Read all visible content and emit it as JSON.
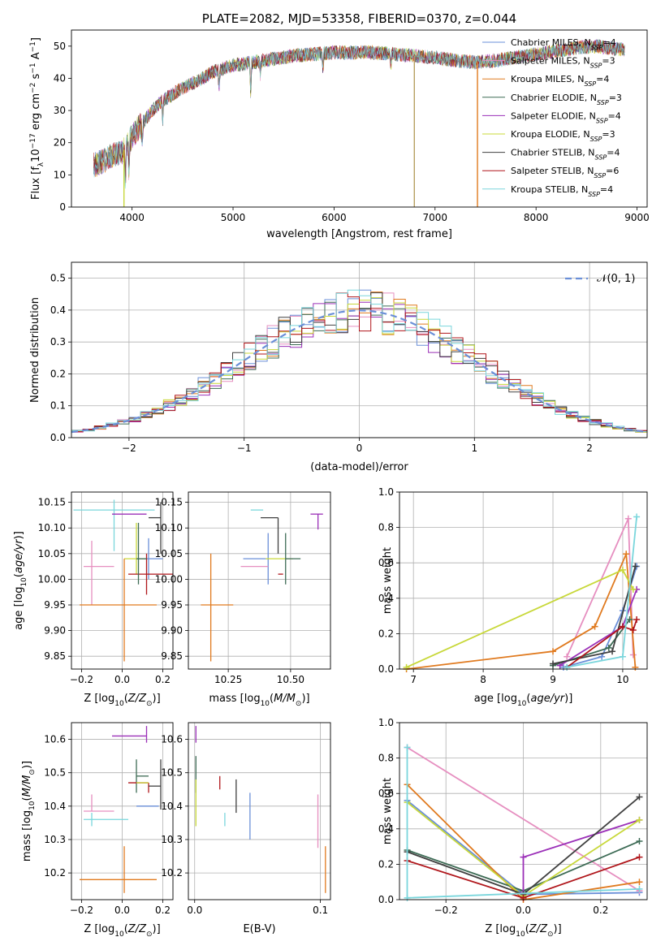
{
  "chart_data": [
    {
      "id": "spectrum",
      "type": "line",
      "title": "PLATE=2082, MJD=53358, FIBERID=0370, z=0.044",
      "xlabel": "wavelength [Angstrom, rest frame]",
      "ylabel": "Flux [f_λ10^-17 erg cm^-2 s^-1 A^-1]",
      "xlim": [
        3400,
        9100
      ],
      "ylim": [
        0,
        55
      ],
      "xticks": [
        4000,
        5000,
        6000,
        7000,
        8000,
        9000
      ],
      "yticks": [
        0,
        10,
        20,
        30,
        40,
        50
      ],
      "grid": false,
      "legend_position": "top-right",
      "legend": [
        {
          "label": "Chabrier MILES, N_SSP=4",
          "color": "#6a8fd8"
        },
        {
          "label": "Salpeter MILES, N_SSP=3",
          "color": "#e68fc0"
        },
        {
          "label": "Kroupa MILES, N_SSP=4",
          "color": "#e07a1f"
        },
        {
          "label": "Chabrier ELODIE, N_SSP=3",
          "color": "#3d6b55"
        },
        {
          "label": "Salpeter ELODIE, N_SSP=4",
          "color": "#9b30b8"
        },
        {
          "label": "Kroupa ELODIE, N_SSP=3",
          "color": "#c8d83a"
        },
        {
          "label": "Chabrier STELIB, N_SSP=4",
          "color": "#404040"
        },
        {
          "label": "Salpeter STELIB, N_SSP=6",
          "color": "#b0161b"
        },
        {
          "label": "Kroupa STELIB, N_SSP=4",
          "color": "#7ad6dc"
        }
      ],
      "continuum": {
        "x": [
          3620,
          3700,
          3800,
          3900,
          3950,
          4000,
          4100,
          4200,
          4300,
          4400,
          4500,
          4600,
          4700,
          4800,
          4900,
          5000,
          5100,
          5200,
          5300,
          5400,
          5500,
          5600,
          5800,
          6000,
          6200,
          6400,
          6600,
          6800,
          7000,
          7200,
          7400,
          7600,
          7800,
          8000,
          8200,
          8400,
          8600,
          8800
        ],
        "y": [
          13,
          14,
          16,
          17,
          19,
          22,
          26,
          30,
          33,
          35,
          37,
          38.5,
          40,
          42,
          43,
          44,
          44.5,
          45,
          45.5,
          46,
          46.5,
          47,
          47.5,
          48,
          48,
          48,
          47.5,
          47,
          46.5,
          45.5,
          45,
          45.5,
          46.5,
          47.5,
          48.5,
          49.5,
          50,
          49
        ]
      },
      "spikes": [
        {
          "x": 3920,
          "y": 0,
          "color": "#c8d83a"
        },
        {
          "x": 6795,
          "y": 0,
          "color": "#b8a060"
        },
        {
          "x": 7420,
          "y": 0,
          "color": "#e07a1f"
        }
      ]
    },
    {
      "id": "residuals",
      "type": "histogram",
      "xlabel": "(data-model)/error",
      "ylabel": "Normed distribution",
      "xlim": [
        -2.5,
        2.5
      ],
      "ylim": [
        0,
        0.55
      ],
      "xticks": [
        -2,
        -1,
        0,
        1,
        2
      ],
      "yticks": [
        0.0,
        0.1,
        0.2,
        0.3,
        0.4,
        0.5
      ],
      "grid": true,
      "legend_position": "top-right",
      "reference": {
        "label": "𝒩(0, 1)",
        "color": "#6a8fd8",
        "dash": true
      },
      "bin_width": 0.1
    },
    {
      "id": "age_vs_Z",
      "type": "scatter",
      "xlabel": "Z [log10(Z/Z⊙)]",
      "ylabel": "age  [log10(age/yr)]",
      "xlim": [
        -0.25,
        0.25
      ],
      "ylim": [
        9.825,
        10.17
      ],
      "xticks": [
        -0.2,
        0.0,
        0.2
      ],
      "yticks": [
        9.85,
        9.9,
        9.95,
        10.0,
        10.05,
        10.1,
        10.15
      ],
      "grid": true,
      "points": [
        {
          "x": -0.04,
          "y": 10.135,
          "xerr": [
            0.2,
            0.2
          ],
          "yerr": [
            0.08,
            0.02
          ],
          "color": "#7ad6dc"
        },
        {
          "x": 0.12,
          "y": 10.127,
          "xerr": [
            0.17,
            0.0
          ],
          "yerr": [
            0.0,
            0.0
          ],
          "color": "#9b30b8"
        },
        {
          "x": 0.19,
          "y": 10.12,
          "xerr": [
            0.06,
            0.0
          ],
          "yerr": [
            0.07,
            0.03
          ],
          "color": "#404040"
        },
        {
          "x": 0.13,
          "y": 10.04,
          "xerr": [
            0.06,
            0.07
          ],
          "yerr": [
            0.04,
            0.04
          ],
          "color": "#6a8fd8"
        },
        {
          "x": 0.07,
          "y": 10.04,
          "xerr": [
            0.06,
            0.05
          ],
          "yerr": [
            0.03,
            0.07
          ],
          "color": "#c8d83a"
        },
        {
          "x": -0.15,
          "y": 10.025,
          "xerr": [
            0.04,
            0.11
          ],
          "yerr": [
            0.075,
            0.05
          ],
          "color": "#e68fc0"
        },
        {
          "x": 0.12,
          "y": 10.01,
          "xerr": [
            0.09,
            0.13
          ],
          "yerr": [
            0.04,
            0.04
          ],
          "color": "#b0161b"
        },
        {
          "x": 0.08,
          "y": 10.04,
          "xerr": [
            0.01,
            0.04
          ],
          "yerr": [
            0.05,
            0.07
          ],
          "color": "#3d6b55"
        },
        {
          "x": 0.01,
          "y": 9.95,
          "xerr": [
            0.22,
            0.16
          ],
          "yerr": [
            0.11,
            0.09
          ],
          "color": "#e07a1f"
        }
      ]
    },
    {
      "id": "age_vs_mass",
      "type": "scatter",
      "xlabel": "mass [log10(M/M⊙)]",
      "ylabel": "",
      "xlim": [
        10.09,
        10.66
      ],
      "ylim": [
        9.825,
        10.17
      ],
      "xticks": [
        10.25,
        10.5
      ],
      "yticks": [
        9.85,
        9.9,
        9.95,
        10.0,
        10.05,
        10.1,
        10.15
      ],
      "grid": true,
      "points": [
        {
          "x": 10.36,
          "y": 10.135,
          "xerr": [
            0.02,
            0.03
          ],
          "yerr": [
            0.0,
            0.0
          ],
          "color": "#7ad6dc"
        },
        {
          "x": 10.61,
          "y": 10.127,
          "xerr": [
            0.03,
            0.02
          ],
          "yerr": [
            0.03,
            0.0
          ],
          "color": "#9b30b8"
        },
        {
          "x": 10.45,
          "y": 10.12,
          "xerr": [
            0.07,
            0.0
          ],
          "yerr": [
            0.07,
            0.0
          ],
          "color": "#404040"
        },
        {
          "x": 10.41,
          "y": 10.04,
          "xerr": [
            0.1,
            0.0
          ],
          "yerr": [
            0.05,
            0.05
          ],
          "color": "#6a8fd8"
        },
        {
          "x": 10.45,
          "y": 10.04,
          "xerr": [
            0.05,
            0.06
          ],
          "yerr": [
            0.0,
            0.0
          ],
          "color": "#c8d83a"
        },
        {
          "x": 10.39,
          "y": 10.025,
          "xerr": [
            0.09,
            0.02
          ],
          "yerr": [
            0.0,
            0.0
          ],
          "color": "#e68fc0"
        },
        {
          "x": 10.47,
          "y": 10.01,
          "xerr": [
            0.02,
            0.0
          ],
          "yerr": [
            0.0,
            0.0
          ],
          "color": "#b0161b"
        },
        {
          "x": 10.48,
          "y": 10.04,
          "xerr": [
            0.0,
            0.06
          ],
          "yerr": [
            0.05,
            0.05
          ],
          "color": "#3d6b55"
        },
        {
          "x": 10.18,
          "y": 9.95,
          "xerr": [
            0.04,
            0.09
          ],
          "yerr": [
            0.11,
            0.1
          ],
          "color": "#e07a1f"
        }
      ]
    },
    {
      "id": "weight_vs_age",
      "type": "line",
      "xlabel": "age  [log10(age/yr)]",
      "ylabel": "mass weight",
      "xlim": [
        6.8,
        10.35
      ],
      "ylim": [
        0.0,
        1.0
      ],
      "xticks": [
        7,
        8,
        9,
        10
      ],
      "yticks": [
        0.0,
        0.2,
        0.4,
        0.6,
        0.8,
        1.0
      ],
      "grid": true,
      "series": [
        {
          "x": [
            9.15,
            9.7,
            10.0,
            10.2
          ],
          "y": [
            0.01,
            0.07,
            0.33,
            0.58
          ],
          "color": "#6a8fd8"
        },
        {
          "x": [
            9.2,
            10.08,
            10.15
          ],
          "y": [
            0.07,
            0.85,
            0.08
          ],
          "color": "#e68fc0"
        },
        {
          "x": [
            6.9,
            9.0,
            9.6,
            10.05,
            10.18
          ],
          "y": [
            0.0,
            0.1,
            0.24,
            0.65,
            0.01
          ],
          "color": "#e07a1f"
        },
        {
          "x": [
            9.0,
            9.8,
            10.1
          ],
          "y": [
            0.02,
            0.12,
            0.28
          ],
          "color": "#3d6b55"
        },
        {
          "x": [
            9.1,
            10.0,
            10.2
          ],
          "y": [
            0.02,
            0.24,
            0.45
          ],
          "color": "#9b30b8"
        },
        {
          "x": [
            6.9,
            10.0,
            10.15
          ],
          "y": [
            0.01,
            0.56,
            0.45
          ],
          "color": "#c8d83a"
        },
        {
          "x": [
            9.0,
            9.85,
            10.18
          ],
          "y": [
            0.03,
            0.1,
            0.58
          ],
          "color": "#404040"
        },
        {
          "x": [
            9.2,
            10.0,
            10.15,
            10.2
          ],
          "y": [
            0.01,
            0.24,
            0.22,
            0.28
          ],
          "color": "#b0161b"
        },
        {
          "x": [
            9.2,
            10.0,
            10.2
          ],
          "y": [
            0.01,
            0.07,
            0.86
          ],
          "color": "#7ad6dc"
        }
      ]
    },
    {
      "id": "mass_vs_Z",
      "type": "scatter",
      "xlabel": "Z [log10(Z/Z⊙)]",
      "ylabel": "mass [log10(M/M⊙)]",
      "xlim": [
        -0.25,
        0.25
      ],
      "ylim": [
        10.12,
        10.65
      ],
      "xticks": [
        -0.2,
        0.0,
        0.2
      ],
      "yticks": [
        10.2,
        10.3,
        10.4,
        10.5,
        10.6
      ],
      "grid": true,
      "points": [
        {
          "x": 0.12,
          "y": 10.61,
          "xerr": [
            0.17,
            0.0
          ],
          "yerr": [
            0.02,
            0.03
          ],
          "color": "#9b30b8"
        },
        {
          "x": 0.07,
          "y": 10.49,
          "xerr": [
            0.0,
            0.06
          ],
          "yerr": [
            0.05,
            0.05
          ],
          "color": "#3d6b55"
        },
        {
          "x": 0.13,
          "y": 10.47,
          "xerr": [
            0.1,
            0.0
          ],
          "yerr": [
            0.03,
            0.0
          ],
          "color": "#b0161b"
        },
        {
          "x": 0.07,
          "y": 10.47,
          "xerr": [
            0.0,
            0.06
          ],
          "yerr": [
            0.0,
            0.0
          ],
          "color": "#c8d83a"
        },
        {
          "x": 0.19,
          "y": 10.46,
          "xerr": [
            0.06,
            0.0
          ],
          "yerr": [
            0.07,
            0.08
          ],
          "color": "#404040"
        },
        {
          "x": 0.13,
          "y": 10.4,
          "xerr": [
            0.06,
            0.05
          ],
          "yerr": [
            0.0,
            0.0
          ],
          "color": "#6a8fd8"
        },
        {
          "x": -0.15,
          "y": 10.385,
          "xerr": [
            0.04,
            0.11
          ],
          "yerr": [
            0.0,
            0.05
          ],
          "color": "#e68fc0"
        },
        {
          "x": -0.15,
          "y": 10.36,
          "xerr": [
            0.04,
            0.18
          ],
          "yerr": [
            0.02,
            0.02
          ],
          "color": "#7ad6dc"
        },
        {
          "x": 0.01,
          "y": 10.18,
          "xerr": [
            0.22,
            0.16
          ],
          "yerr": [
            0.04,
            0.1
          ],
          "color": "#e07a1f"
        }
      ]
    },
    {
      "id": "mass_vs_ebv",
      "type": "scatter",
      "xlabel": "E(B-V)",
      "ylabel": "",
      "xlim": [
        -0.005,
        0.108
      ],
      "ylim": [
        10.12,
        10.65
      ],
      "xticks": [
        0.0,
        0.1
      ],
      "yticks": [
        10.2,
        10.3,
        10.4,
        10.5,
        10.6
      ],
      "grid": true,
      "points": [
        {
          "x": 0.001,
          "y": 10.61,
          "xerr": [
            0.0,
            0.0
          ],
          "yerr": [
            0.02,
            0.03
          ],
          "color": "#9b30b8"
        },
        {
          "x": 0.001,
          "y": 10.48,
          "xerr": [
            0.0,
            0.0
          ],
          "yerr": [
            0.04,
            0.07
          ],
          "color": "#3d6b55"
        },
        {
          "x": 0.001,
          "y": 10.4,
          "xerr": [
            0.0,
            0.0
          ],
          "yerr": [
            0.06,
            0.08
          ],
          "color": "#c8d83a"
        },
        {
          "x": 0.02,
          "y": 10.47,
          "xerr": [
            0.0,
            0.0
          ],
          "yerr": [
            0.02,
            0.02
          ],
          "color": "#b0161b"
        },
        {
          "x": 0.024,
          "y": 10.36,
          "xerr": [
            0.0,
            0.0
          ],
          "yerr": [
            0.02,
            0.02
          ],
          "color": "#7ad6dc"
        },
        {
          "x": 0.033,
          "y": 10.43,
          "xerr": [
            0.0,
            0.0
          ],
          "yerr": [
            0.05,
            0.05
          ],
          "color": "#404040"
        },
        {
          "x": 0.044,
          "y": 10.37,
          "xerr": [
            0.0,
            0.0
          ],
          "yerr": [
            0.07,
            0.07
          ],
          "color": "#6a8fd8"
        },
        {
          "x": 0.098,
          "y": 10.335,
          "xerr": [
            0.0,
            0.0
          ],
          "yerr": [
            0.06,
            0.1
          ],
          "color": "#e68fc0"
        },
        {
          "x": 0.104,
          "y": 10.21,
          "xerr": [
            0.0,
            0.0
          ],
          "yerr": [
            0.07,
            0.07
          ],
          "color": "#e07a1f"
        }
      ]
    },
    {
      "id": "weight_vs_Z",
      "type": "line",
      "xlabel": "Z [log10(Z/Z⊙)]",
      "ylabel": "mass weight",
      "xlim": [
        -0.32,
        0.32
      ],
      "ylim": [
        0.0,
        1.0
      ],
      "xticks": [
        -0.2,
        0.0,
        0.2
      ],
      "yticks": [
        0.0,
        0.2,
        0.4,
        0.6,
        0.8,
        1.0
      ],
      "grid": true,
      "series": [
        {
          "x": [
            -0.3,
            0.0,
            0.3
          ],
          "y": [
            0.56,
            0.03,
            0.04
          ],
          "color": "#6a8fd8"
        },
        {
          "x": [
            -0.3,
            0.3
          ],
          "y": [
            0.86,
            0.05
          ],
          "color": "#e68fc0"
        },
        {
          "x": [
            -0.3,
            0.0,
            0.3
          ],
          "y": [
            0.65,
            0.0,
            0.1
          ],
          "color": "#e07a1f"
        },
        {
          "x": [
            -0.3,
            0.0,
            0.3
          ],
          "y": [
            0.28,
            0.05,
            0.33
          ],
          "color": "#3d6b55"
        },
        {
          "x": [
            0.0,
            0.0,
            0.3
          ],
          "y": [
            0.04,
            0.24,
            0.45
          ],
          "color": "#9b30b8"
        },
        {
          "x": [
            -0.3,
            0.0,
            0.3
          ],
          "y": [
            0.55,
            0.02,
            0.45
          ],
          "color": "#c8d83a"
        },
        {
          "x": [
            -0.3,
            0.0,
            0.3
          ],
          "y": [
            0.27,
            0.03,
            0.58
          ],
          "color": "#404040"
        },
        {
          "x": [
            -0.3,
            0.0,
            0.3
          ],
          "y": [
            0.22,
            0.01,
            0.24
          ],
          "color": "#b0161b"
        },
        {
          "x": [
            -0.3,
            -0.3,
            0.3
          ],
          "y": [
            0.86,
            0.01,
            0.06
          ],
          "color": "#7ad6dc"
        }
      ]
    }
  ]
}
